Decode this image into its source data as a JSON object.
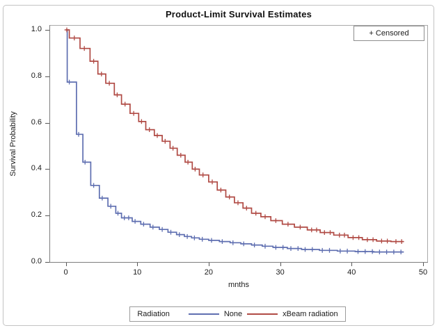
{
  "figure": {
    "title": "Product-Limit Survival Estimates",
    "censored_legend_label": "+ Censored",
    "legend": {
      "title": "Radiation",
      "entries": [
        {
          "label": "None",
          "color": "#5e6eb0"
        },
        {
          "label": "xBeam radiation",
          "color": "#b04a44"
        }
      ]
    }
  },
  "chart_data": {
    "type": "line",
    "subtype": "kaplan-meier-step-survival",
    "title": "Product-Limit Survival Estimates",
    "xlabel": "mnths",
    "ylabel": "Survival Probability",
    "xlim": [
      0,
      50
    ],
    "ylim": [
      0.0,
      1.0
    ],
    "x_tick_labels": [
      "0",
      "10",
      "20",
      "30",
      "40",
      "50"
    ],
    "x_tick_values": [
      0,
      10,
      20,
      30,
      40,
      50
    ],
    "y_tick_labels": [
      "0.0",
      "0.2",
      "0.4",
      "0.6",
      "0.8",
      "1.0"
    ],
    "y_tick_values": [
      0.0,
      0.2,
      0.4,
      0.6,
      0.8,
      1.0
    ],
    "grid": false,
    "legend_position": "bottom",
    "censored_marker": "plus",
    "t_end": 47.3,
    "series": [
      {
        "name": "None",
        "color": "#5e6eb0",
        "steps": [
          [
            0,
            1.0
          ],
          [
            0.2,
            0.775
          ],
          [
            1.5,
            0.55
          ],
          [
            2.4,
            0.43
          ],
          [
            3.5,
            0.33
          ],
          [
            4.7,
            0.275
          ],
          [
            5.9,
            0.24
          ],
          [
            7.0,
            0.21
          ],
          [
            7.8,
            0.19
          ],
          [
            9.3,
            0.175
          ],
          [
            10.5,
            0.163
          ],
          [
            11.8,
            0.15
          ],
          [
            13.1,
            0.14
          ],
          [
            14.3,
            0.128
          ],
          [
            15.5,
            0.118
          ],
          [
            16.6,
            0.11
          ],
          [
            17.6,
            0.104
          ],
          [
            18.7,
            0.098
          ],
          [
            20.0,
            0.093
          ],
          [
            21.5,
            0.088
          ],
          [
            23.0,
            0.083
          ],
          [
            24.5,
            0.078
          ],
          [
            26.0,
            0.073
          ],
          [
            27.5,
            0.068
          ],
          [
            29.0,
            0.063
          ],
          [
            31.0,
            0.058
          ],
          [
            33.0,
            0.054
          ],
          [
            35.5,
            0.05
          ],
          [
            38.0,
            0.047
          ],
          [
            40.5,
            0.045
          ],
          [
            43.0,
            0.043
          ]
        ],
        "censored_times": [
          0.5,
          1.8,
          2.7,
          3.9,
          5.1,
          6.3,
          7.3,
          8.2,
          8.8,
          9.7,
          10.9,
          12.2,
          13.5,
          14.7,
          15.9,
          17.0,
          18.0,
          19.1,
          20.4,
          21.9,
          23.4,
          24.9,
          26.4,
          27.9,
          29.4,
          30.4,
          31.5,
          32.5,
          33.5,
          34.5,
          35.9,
          36.9,
          38.4,
          39.4,
          40.9,
          41.9,
          42.9,
          43.9,
          44.9,
          45.9,
          46.9
        ]
      },
      {
        "name": "xBeam radiation",
        "color": "#b04a44",
        "steps": [
          [
            0,
            1.0
          ],
          [
            0.5,
            0.965
          ],
          [
            2.0,
            0.92
          ],
          [
            3.4,
            0.865
          ],
          [
            4.5,
            0.81
          ],
          [
            5.6,
            0.77
          ],
          [
            6.8,
            0.72
          ],
          [
            7.8,
            0.68
          ],
          [
            9.0,
            0.64
          ],
          [
            10.2,
            0.605
          ],
          [
            11.2,
            0.57
          ],
          [
            12.4,
            0.545
          ],
          [
            13.5,
            0.52
          ],
          [
            14.6,
            0.49
          ],
          [
            15.6,
            0.46
          ],
          [
            16.7,
            0.43
          ],
          [
            17.7,
            0.4
          ],
          [
            18.7,
            0.375
          ],
          [
            20.0,
            0.345
          ],
          [
            21.2,
            0.31
          ],
          [
            22.4,
            0.28
          ],
          [
            23.6,
            0.255
          ],
          [
            24.8,
            0.232
          ],
          [
            26.0,
            0.21
          ],
          [
            27.3,
            0.195
          ],
          [
            28.7,
            0.178
          ],
          [
            30.3,
            0.163
          ],
          [
            32.0,
            0.15
          ],
          [
            33.8,
            0.138
          ],
          [
            35.6,
            0.127
          ],
          [
            37.5,
            0.116
          ],
          [
            39.5,
            0.105
          ],
          [
            41.5,
            0.096
          ],
          [
            43.5,
            0.09
          ],
          [
            45.5,
            0.088
          ]
        ],
        "censored_times": [
          0.15,
          1.2,
          2.6,
          3.9,
          5.0,
          6.1,
          7.2,
          8.3,
          9.5,
          10.6,
          11.7,
          12.8,
          13.9,
          15.0,
          16.1,
          17.1,
          18.1,
          19.2,
          20.5,
          21.7,
          22.9,
          24.1,
          25.3,
          26.6,
          27.9,
          29.4,
          31.1,
          32.8,
          34.4,
          35.1,
          36.2,
          37.0,
          38.3,
          39.0,
          40.2,
          41.0,
          42.2,
          43.0,
          44.2,
          45.0,
          46.2,
          47.0
        ]
      }
    ]
  }
}
